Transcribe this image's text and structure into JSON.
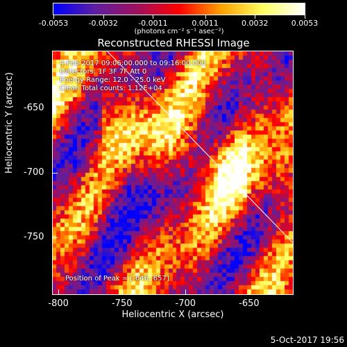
{
  "title": "Reconstructed RHESSI Image",
  "colorbar": {
    "tick_labels": [
      "-0.0053",
      "-0.0032",
      "-0.0011",
      "0.0011",
      "0.0032",
      "0.0053"
    ],
    "units": "(photons cm⁻² s⁻¹ asec⁻²)",
    "range": [
      -0.0053,
      0.0053
    ],
    "colormap_stops": [
      "#0000ff",
      "#6020a0",
      "#a01060",
      "#ff0000",
      "#ffa000",
      "#ffff60",
      "#ffffff"
    ]
  },
  "info": {
    "line1": "4-Feb-2017 09:06:00.000 to 09:16:00.000",
    "line2": "Detectors: 1F 3F 7F  Att 0",
    "line3": "Energy Range: 12.0 - 25.0 keV",
    "line4": "Clean    Total counts: 1.12E+04",
    "peak": "Position of Peak = [-646,-657]"
  },
  "axes": {
    "xlabel": "Heliocentric X (arcsec)",
    "ylabel": "Heliocentric Y (arcsec)",
    "xlim": [
      -805,
      -615
    ],
    "ylim": [
      -795,
      -605
    ],
    "xticks": [
      "-800",
      "-750",
      "-700",
      "-650"
    ],
    "yticks": [
      "-650",
      "-700",
      "-750"
    ]
  },
  "limb_line": {
    "from": [
      -762,
      -605
    ],
    "to": [
      -615,
      -755
    ]
  },
  "datestamp": "5-Oct-2017 19:56"
}
